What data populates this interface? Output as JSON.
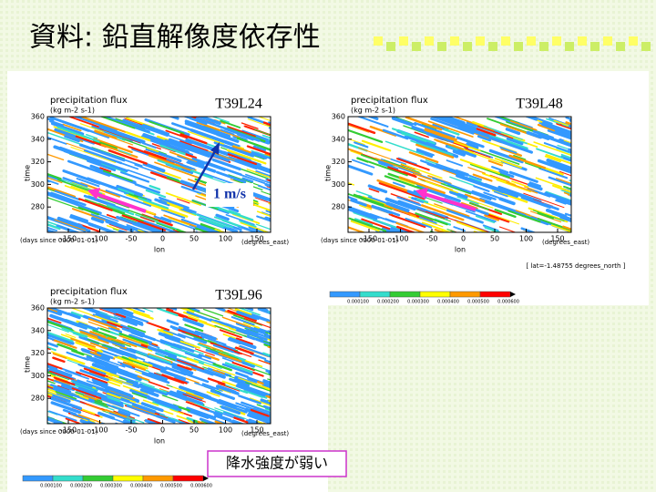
{
  "header": {
    "title": "資料: 鉛直解像度依存性"
  },
  "panels": [
    {
      "label": "T39L24",
      "plot_title": "precipitation flux",
      "units": "(kg m-2 s-1)",
      "y_axis_label": "time",
      "y_tick_labels": [
        "360",
        "340",
        "320",
        "300",
        "280"
      ],
      "x_tick_labels": [
        "-150",
        "-100",
        "-50",
        "0",
        "50",
        "100",
        "150"
      ],
      "x_axis_label": "lon",
      "x_left_note": "(days since 0000-01-01)",
      "x_right_note": "(degrees_east)"
    },
    {
      "label": "T39L48",
      "plot_title": "precipitation flux",
      "units": "(kg m-2 s-1)",
      "y_axis_label": "time",
      "y_tick_labels": [
        "360",
        "340",
        "320",
        "300",
        "280"
      ],
      "x_tick_labels": [
        "-150",
        "-100",
        "-50",
        "0",
        "50",
        "100",
        "150"
      ],
      "x_axis_label": "lon",
      "x_left_note": "(days since 0000-01-01)",
      "x_right_note": "(degrees_east)"
    },
    {
      "label": "T39L96",
      "plot_title": "precipitation flux",
      "units": "(kg m-2 s-1)",
      "y_axis_label": "time",
      "y_tick_labels": [
        "360",
        "340",
        "320",
        "300",
        "280"
      ],
      "x_tick_labels": [
        "-150",
        "-100",
        "-50",
        "0",
        "50",
        "100",
        "150"
      ],
      "x_axis_label": "lon",
      "x_left_note": "(days since 0000-01-01)",
      "x_right_note": "(degrees_east)"
    }
  ],
  "annotations": {
    "speed": "1 m/s",
    "latitude_note": "[ lat=-1.48755 degrees_north ]",
    "callout": "降水強度が弱い"
  },
  "colorbar_labels": [
    "0.000100",
    "0.000200",
    "0.000300",
    "0.000400",
    "0.000500",
    "0.000600"
  ]
}
